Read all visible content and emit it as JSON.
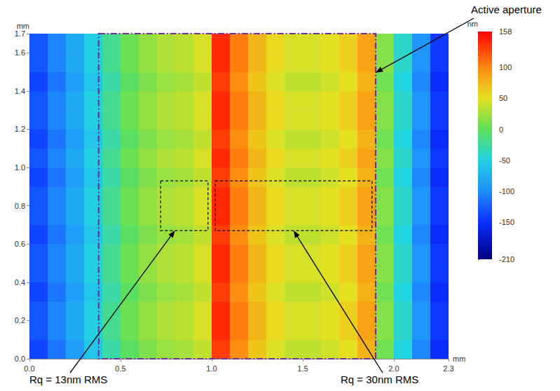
{
  "chart_data": {
    "type": "heatmap",
    "x_label": "mm",
    "y_label": "mm",
    "xlim": [
      0,
      2.3
    ],
    "xticks": [
      {
        "value": 0,
        "label": "0.0"
      },
      0.5,
      {
        "value": 1,
        "label": "1.0"
      },
      1.5,
      {
        "value": 2,
        "label": "2.0"
      },
      2.3
    ],
    "ylim": [
      0,
      1.7
    ],
    "yticks": [
      {
        "value": 0,
        "label": "0.0"
      },
      0.2,
      0.4,
      0.6,
      0.8,
      {
        "value": 1,
        "label": "1.0"
      },
      1.2,
      1.4,
      1.6,
      1.7
    ],
    "grid": false,
    "heatmap": {
      "x_edges": [
        0,
        0.1,
        0.2,
        0.3,
        0.4,
        0.5,
        0.6,
        0.7,
        0.8,
        0.9,
        1.0,
        1.1,
        1.2,
        1.3,
        1.4,
        1.5,
        1.6,
        1.7,
        1.8,
        1.9,
        2.0,
        2.1,
        2.2,
        2.3
      ],
      "y_edges": [
        0,
        0.1,
        0.2,
        0.3,
        0.4,
        0.5,
        0.6,
        0.7,
        0.8,
        0.9,
        1.0,
        1.1,
        1.2,
        1.3,
        1.4,
        1.5,
        1.6,
        1.7
      ],
      "values": [
        [
          -138,
          -113,
          -88,
          -58,
          -28,
          -3,
          12,
          22,
          27,
          37,
          132,
          97,
          67,
          47,
          37,
          37,
          42,
          52,
          77,
          7,
          -48,
          -103,
          -153
        ],
        [
          -130,
          -105,
          -80,
          -50,
          -20,
          5,
          20,
          30,
          35,
          45,
          140,
          105,
          75,
          55,
          45,
          45,
          50,
          60,
          85,
          15,
          -40,
          -95,
          -145
        ],
        [
          -130,
          -105,
          -80,
          -50,
          -20,
          5,
          20,
          30,
          35,
          45,
          140,
          105,
          75,
          55,
          45,
          45,
          50,
          60,
          85,
          15,
          -40,
          -95,
          -145
        ],
        [
          -138,
          -113,
          -88,
          -58,
          -28,
          -3,
          12,
          22,
          27,
          37,
          132,
          97,
          67,
          47,
          37,
          37,
          42,
          52,
          77,
          7,
          -48,
          -103,
          -153
        ],
        [
          -130,
          -105,
          -80,
          -50,
          -20,
          5,
          20,
          30,
          35,
          45,
          140,
          105,
          75,
          55,
          45,
          45,
          50,
          60,
          85,
          15,
          -40,
          -95,
          -145
        ],
        [
          -130,
          -105,
          -80,
          -50,
          -20,
          5,
          20,
          30,
          35,
          45,
          140,
          105,
          75,
          55,
          45,
          45,
          50,
          60,
          85,
          15,
          -40,
          -95,
          -145
        ],
        [
          -138,
          -113,
          -88,
          -58,
          -28,
          -3,
          12,
          22,
          27,
          37,
          132,
          97,
          67,
          47,
          37,
          37,
          42,
          52,
          77,
          7,
          -48,
          -103,
          -153
        ],
        [
          -130,
          -105,
          -80,
          -50,
          -20,
          5,
          20,
          30,
          35,
          45,
          140,
          105,
          75,
          55,
          45,
          45,
          50,
          60,
          85,
          15,
          -40,
          -95,
          -145
        ],
        [
          -130,
          -105,
          -80,
          -50,
          -20,
          5,
          20,
          30,
          35,
          45,
          140,
          105,
          75,
          55,
          45,
          45,
          50,
          60,
          85,
          15,
          -40,
          -95,
          -145
        ],
        [
          -138,
          -113,
          -88,
          -58,
          -28,
          -3,
          12,
          22,
          27,
          37,
          132,
          97,
          67,
          47,
          37,
          37,
          42,
          52,
          77,
          7,
          -48,
          -103,
          -153
        ],
        [
          -130,
          -105,
          -80,
          -50,
          -20,
          5,
          20,
          30,
          35,
          45,
          140,
          105,
          75,
          55,
          45,
          45,
          50,
          60,
          85,
          15,
          -40,
          -95,
          -145
        ],
        [
          -138,
          -113,
          -88,
          -58,
          -28,
          -3,
          12,
          22,
          27,
          37,
          132,
          97,
          67,
          47,
          37,
          37,
          42,
          52,
          77,
          7,
          -48,
          -103,
          -153
        ],
        [
          -130,
          -105,
          -80,
          -50,
          -20,
          5,
          20,
          30,
          35,
          45,
          140,
          105,
          75,
          55,
          45,
          45,
          50,
          60,
          85,
          15,
          -40,
          -95,
          -145
        ],
        [
          -130,
          -105,
          -80,
          -50,
          -20,
          5,
          20,
          30,
          35,
          45,
          140,
          105,
          75,
          55,
          45,
          45,
          50,
          60,
          85,
          15,
          -40,
          -95,
          -145
        ],
        [
          -138,
          -113,
          -88,
          -58,
          -28,
          -3,
          12,
          22,
          27,
          37,
          132,
          97,
          67,
          47,
          37,
          37,
          42,
          52,
          77,
          7,
          -48,
          -103,
          -153
        ],
        [
          -130,
          -105,
          -80,
          -50,
          -20,
          5,
          20,
          30,
          35,
          45,
          140,
          105,
          75,
          55,
          45,
          45,
          50,
          60,
          85,
          15,
          -40,
          -95,
          -145
        ],
        [
          -130,
          -105,
          -80,
          -50,
          -20,
          5,
          20,
          30,
          35,
          45,
          140,
          105,
          75,
          55,
          45,
          45,
          50,
          60,
          85,
          15,
          -40,
          -95,
          -145
        ]
      ]
    },
    "colorbar": {
      "label": "nm",
      "range": [
        -210,
        158
      ],
      "ticks": [
        158,
        100,
        50,
        0,
        -50,
        -100,
        -150,
        -210
      ]
    },
    "annotations": [
      {
        "text": "Active aperture",
        "x": [
          0.38,
          1.9
        ],
        "y": [
          0,
          1.7
        ],
        "line_style": "dashdot",
        "color": "#7030a0"
      },
      {
        "text": "Rq = 13nm RMS",
        "x": [
          0.72,
          0.98
        ],
        "y": [
          0.67,
          0.93
        ],
        "line_style": "dashed"
      },
      {
        "text": "Rq = 30nm RMS",
        "x": [
          1.02,
          1.88
        ],
        "y": [
          0.67,
          0.93
        ],
        "line_style": "dashed"
      }
    ]
  }
}
